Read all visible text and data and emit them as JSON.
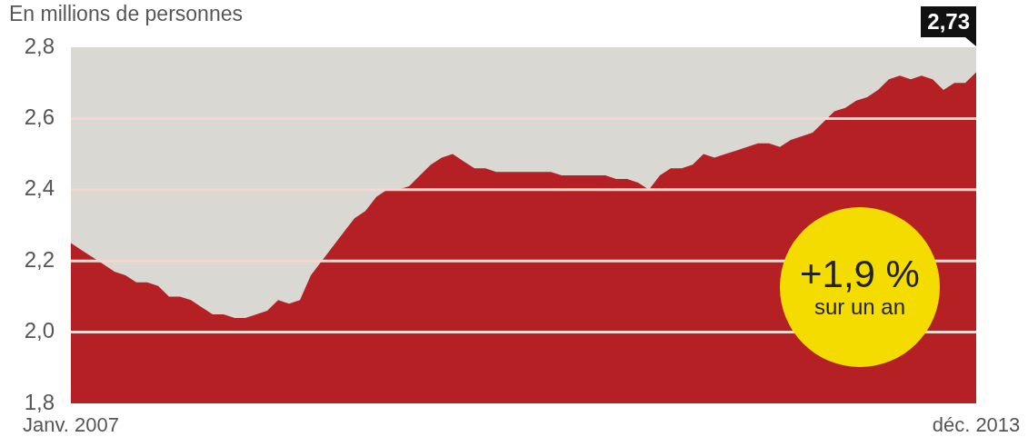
{
  "chart_data": {
    "type": "area",
    "title": "En millions de personnes",
    "categories": [
      "Janv. 2007",
      null,
      null,
      null,
      null,
      null,
      null,
      null,
      null,
      null,
      null,
      null,
      null,
      null,
      null,
      null,
      null,
      null,
      null,
      null,
      null,
      null,
      null,
      null,
      null,
      null,
      null,
      null,
      null,
      null,
      null,
      null,
      null,
      null,
      null,
      null,
      null,
      null,
      null,
      null,
      null,
      null,
      null,
      null,
      null,
      null,
      null,
      null,
      null,
      null,
      null,
      null,
      null,
      null,
      null,
      null,
      null,
      null,
      null,
      null,
      null,
      null,
      null,
      null,
      null,
      null,
      null,
      null,
      null,
      null,
      null,
      null,
      null,
      null,
      null,
      null,
      null,
      null,
      null,
      null,
      null,
      null,
      null,
      "déc. 2013"
    ],
    "series": [
      {
        "color": "#b52024",
        "values": [
          2.25,
          2.23,
          2.21,
          2.19,
          2.17,
          2.16,
          2.14,
          2.14,
          2.13,
          2.1,
          2.1,
          2.09,
          2.07,
          2.05,
          2.05,
          2.04,
          2.04,
          2.05,
          2.06,
          2.09,
          2.08,
          2.09,
          2.16,
          2.2,
          2.24,
          2.28,
          2.32,
          2.34,
          2.38,
          2.4,
          2.4,
          2.41,
          2.44,
          2.47,
          2.49,
          2.5,
          2.48,
          2.46,
          2.46,
          2.45,
          2.45,
          2.45,
          2.45,
          2.45,
          2.45,
          2.44,
          2.44,
          2.44,
          2.44,
          2.44,
          2.43,
          2.43,
          2.42,
          2.4,
          2.44,
          2.46,
          2.46,
          2.47,
          2.5,
          2.49,
          2.5,
          2.51,
          2.52,
          2.53,
          2.53,
          2.52,
          2.54,
          2.55,
          2.56,
          2.59,
          2.62,
          2.63,
          2.65,
          2.66,
          2.68,
          2.71,
          2.72,
          2.71,
          2.72,
          2.71,
          2.68,
          2.7,
          2.7,
          2.73
        ]
      }
    ],
    "ylim": [
      1.8,
      2.8
    ],
    "yticks": [
      {
        "value": 1.8,
        "label": "1,8"
      },
      {
        "value": 2.0,
        "label": "2,0"
      },
      {
        "value": 2.2,
        "label": "2,2"
      },
      {
        "value": 2.4,
        "label": "2,4"
      },
      {
        "value": 2.6,
        "label": "2,6"
      },
      {
        "value": 2.8,
        "label": "2,8"
      }
    ],
    "grid": "y",
    "annotations": [
      {
        "text": "2,73",
        "x": "déc. 2013",
        "y": 2.73
      },
      "+1,9 %",
      "sur un an"
    ]
  }
}
